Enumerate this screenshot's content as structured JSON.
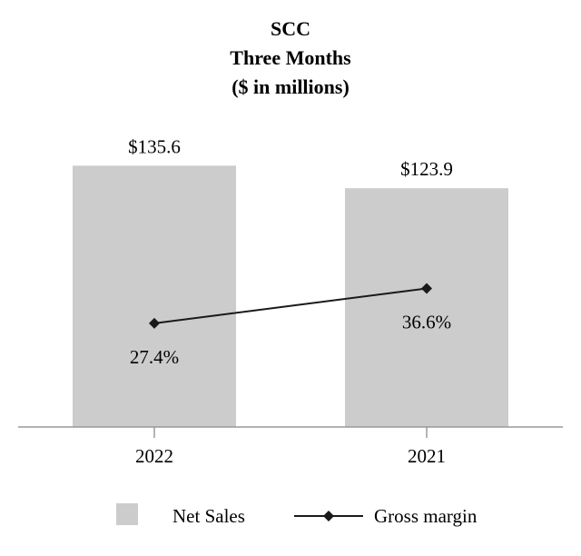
{
  "chart_data": {
    "type": "bar",
    "title_lines": [
      "SCC",
      "Three Months",
      "($ in millions)"
    ],
    "categories": [
      "2022",
      "2021"
    ],
    "series": [
      {
        "name": "Net Sales",
        "kind": "bar",
        "values": [
          135.6,
          123.9
        ],
        "labels": [
          "$135.6",
          "$123.9"
        ],
        "color": "#cccccc"
      },
      {
        "name": "Gross margin",
        "kind": "line",
        "marker": "diamond",
        "values": [
          27.4,
          36.6
        ],
        "labels": [
          "27.4%",
          "36.6%"
        ],
        "color": "#1a1a1a"
      }
    ],
    "ylim": [
      0,
      165
    ],
    "y2lim": [
      0,
      84
    ],
    "grid": false,
    "legend_position": "bottom"
  }
}
